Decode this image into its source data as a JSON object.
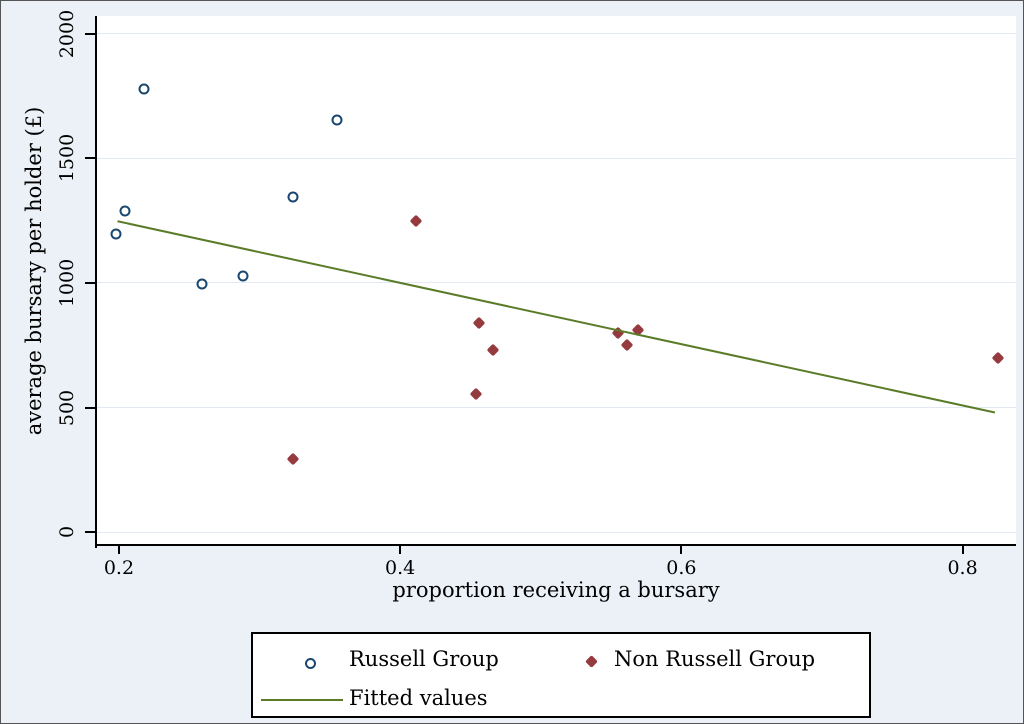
{
  "chart_data": {
    "type": "scatter",
    "title": "",
    "xlabel": "proportion receiving a bursary",
    "ylabel": "average bursary per holder (£)",
    "xlim": [
      0.1844,
      0.838
    ],
    "ylim": [
      -56,
      2072
    ],
    "grid": "horizontal-only",
    "legend_position": "bottom-box",
    "xticks": [
      {
        "value": 0.2,
        "label": "0.2"
      },
      {
        "value": 0.4,
        "label": "0.4"
      },
      {
        "value": 0.6,
        "label": "0.6"
      },
      {
        "value": 0.8,
        "label": "0.8"
      }
    ],
    "yticks": [
      {
        "value": 0,
        "label": "0"
      },
      {
        "value": 500,
        "label": "500"
      },
      {
        "value": 1000,
        "label": "1000"
      },
      {
        "value": 1500,
        "label": "1500"
      },
      {
        "value": 2000,
        "label": "2000"
      }
    ],
    "series": [
      {
        "name": "Russell Group",
        "type": "scatter",
        "marker": "hollow-circle",
        "color": "#1a476f",
        "points": [
          [
            0.198,
            1195
          ],
          [
            0.204,
            1290
          ],
          [
            0.218,
            1780
          ],
          [
            0.259,
            995
          ],
          [
            0.288,
            1030
          ],
          [
            0.324,
            1345
          ],
          [
            0.355,
            1655
          ]
        ]
      },
      {
        "name": "Non Russell Group",
        "type": "scatter",
        "marker": "filled-diamond",
        "color": "#953a3e",
        "points": [
          [
            0.324,
            295
          ],
          [
            0.411,
            1250
          ],
          [
            0.454,
            555
          ],
          [
            0.456,
            840
          ],
          [
            0.466,
            730
          ],
          [
            0.555,
            800
          ],
          [
            0.561,
            750
          ],
          [
            0.569,
            810
          ],
          [
            0.825,
            700
          ]
        ]
      },
      {
        "name": "Fitted values",
        "type": "line",
        "color": "#5a7c29",
        "points": [
          [
            0.199,
            1248
          ],
          [
            0.823,
            480
          ]
        ]
      }
    ],
    "colors": {
      "background": "#ecf1f7",
      "plot_background": "#ffffff",
      "gridline": "#e2e9f3",
      "axis": "#000000",
      "russell_group": "#1a476f",
      "non_russell_group": "#953a3e",
      "fitted_line": "#5a7c29"
    }
  }
}
